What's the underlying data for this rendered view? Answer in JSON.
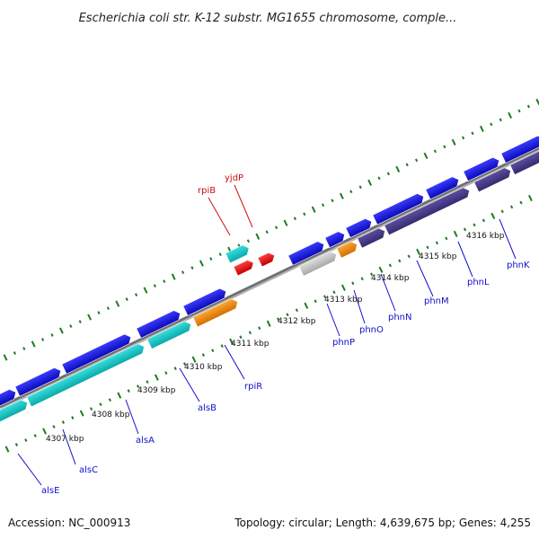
{
  "title": "Escherichia coli str. K-12 substr. MG1655 chromosome, comple...",
  "footer": {
    "accession": "Accession: NC_000913",
    "topology": "Topology: circular; Length: 4,639,675 bp; Genes: 4,255"
  },
  "colors": {
    "backbone": "#777777",
    "tick": "#1f7a1f",
    "blue": "#1010e0",
    "cyan": "#11c6c6",
    "orange": "#ee8a12",
    "purple": "#4a3d88",
    "gray": "#bcbcbc",
    "red": "#ee1111",
    "label_blue": "#1010cc",
    "label_red": "#cc1111"
  },
  "kbp_labels": [
    "4307 kbp",
    "4308 kbp",
    "4309 kbp",
    "4310 kbp",
    "4311 kbp",
    "4312 kbp",
    "4313 kbp",
    "4314 kbp",
    "4315 kbp",
    "4316 kbp"
  ],
  "gene_labels": [
    {
      "name": "alsE",
      "color": "label_blue"
    },
    {
      "name": "alsC",
      "color": "label_blue"
    },
    {
      "name": "alsA",
      "color": "label_blue"
    },
    {
      "name": "alsB",
      "color": "label_blue"
    },
    {
      "name": "rpiR",
      "color": "label_blue"
    },
    {
      "name": "rpiB",
      "color": "label_red"
    },
    {
      "name": "yjdP",
      "color": "label_red"
    },
    {
      "name": "phnP",
      "color": "label_blue"
    },
    {
      "name": "phnO",
      "color": "label_blue"
    },
    {
      "name": "phnN",
      "color": "label_blue"
    },
    {
      "name": "phnM",
      "color": "label_blue"
    },
    {
      "name": "phnL",
      "color": "label_blue"
    },
    {
      "name": "phnK",
      "color": "label_blue"
    }
  ]
}
